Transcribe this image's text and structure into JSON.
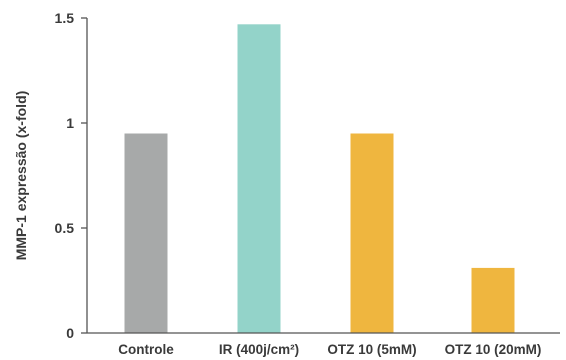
{
  "chart_data": {
    "type": "bar",
    "categories": [
      "Controle",
      "IR (400j/cm²)",
      "OTZ 10 (5mM)",
      "OTZ 10 (20mM)"
    ],
    "values": [
      0.95,
      1.47,
      0.95,
      0.31
    ],
    "colors": [
      "#a7a9a9",
      "#93d3c9",
      "#efb63f",
      "#efb63f"
    ],
    "ylabel": "MMP-1 expressão (x-fold)",
    "xlabel": "",
    "ylim": [
      0,
      1.5
    ],
    "yticks": [
      0,
      0.5,
      1,
      1.5
    ],
    "ytick_labels": [
      "0",
      "0.5",
      "1",
      "1.5"
    ],
    "grid": false,
    "legend": "none"
  }
}
